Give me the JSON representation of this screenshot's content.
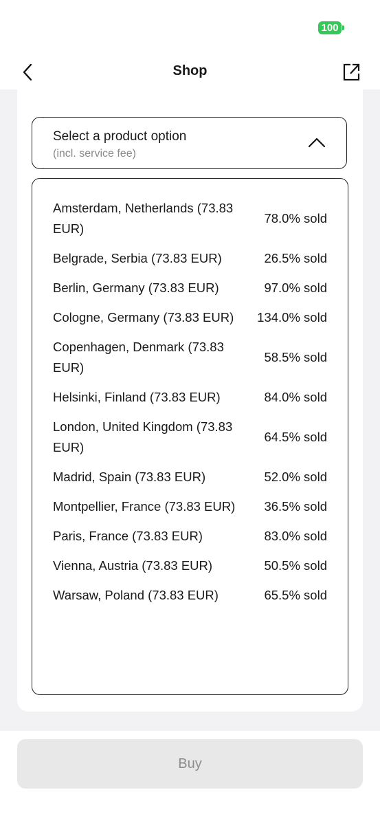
{
  "status_bar": {
    "battery": "100"
  },
  "header": {
    "title": "Shop"
  },
  "product_select": {
    "placeholder": "Select a product option",
    "note": "(incl. service fee)",
    "options": [
      {
        "label": "Amsterdam, Netherlands (73.83 EUR)",
        "sold": "78.0% sold"
      },
      {
        "label": "Belgrade, Serbia (73.83 EUR)",
        "sold": "26.5% sold"
      },
      {
        "label": "Berlin, Germany (73.83 EUR)",
        "sold": "97.0% sold"
      },
      {
        "label": "Cologne, Germany (73.83 EUR)",
        "sold": "134.0% sold"
      },
      {
        "label": "Copenhagen, Denmark (73.83 EUR)",
        "sold": "58.5% sold"
      },
      {
        "label": "Helsinki, Finland (73.83 EUR)",
        "sold": "84.0% sold"
      },
      {
        "label": "London, United Kingdom (73.83 EUR)",
        "sold": "64.5% sold"
      },
      {
        "label": "Madrid, Spain (73.83 EUR)",
        "sold": "52.0% sold"
      },
      {
        "label": "Montpellier, France (73.83 EUR)",
        "sold": "36.5% sold"
      },
      {
        "label": "Paris, France (73.83 EUR)",
        "sold": "83.0% sold"
      },
      {
        "label": "Vienna, Austria (73.83 EUR)",
        "sold": "50.5% sold"
      },
      {
        "label": "Warsaw, Poland (73.83 EUR)",
        "sold": "65.5% sold"
      }
    ]
  },
  "buy_button": {
    "label": "Buy"
  }
}
